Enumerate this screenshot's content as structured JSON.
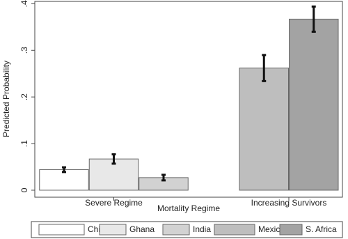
{
  "chart_data": {
    "type": "bar",
    "categories": [
      "Severe Regime",
      "Increasing Survivors"
    ],
    "series": [
      {
        "name": "China",
        "color": "#ffffff",
        "values": [
          0.044,
          null
        ],
        "errors": [
          0.005,
          null
        ]
      },
      {
        "name": "Ghana",
        "color": "#e8e8e8",
        "values": [
          0.067,
          null
        ],
        "errors": [
          0.01,
          null
        ]
      },
      {
        "name": "India",
        "color": "#d2d2d2",
        "values": [
          0.027,
          null
        ],
        "errors": [
          0.006,
          null
        ]
      },
      {
        "name": "Mexico",
        "color": "#bebebe",
        "values": [
          null,
          0.262
        ],
        "errors": [
          null,
          0.028
        ]
      },
      {
        "name": "S. Africa",
        "color": "#a3a3a3",
        "values": [
          null,
          0.367
        ],
        "errors": [
          null,
          0.027
        ]
      }
    ],
    "ylabel": "Predicted Probability",
    "xlabel": "Mortality Regime",
    "ylim": [
      -0.015,
      0.405
    ],
    "yticks": [
      0,
      {
        "value": 0.1,
        "label": ".1"
      },
      {
        "value": 0.2,
        "label": ".2"
      },
      {
        "value": 0.3,
        "label": ".3"
      },
      {
        "value": 0.4,
        "label": ".4"
      }
    ],
    "grid": false,
    "legend": "bottom"
  }
}
